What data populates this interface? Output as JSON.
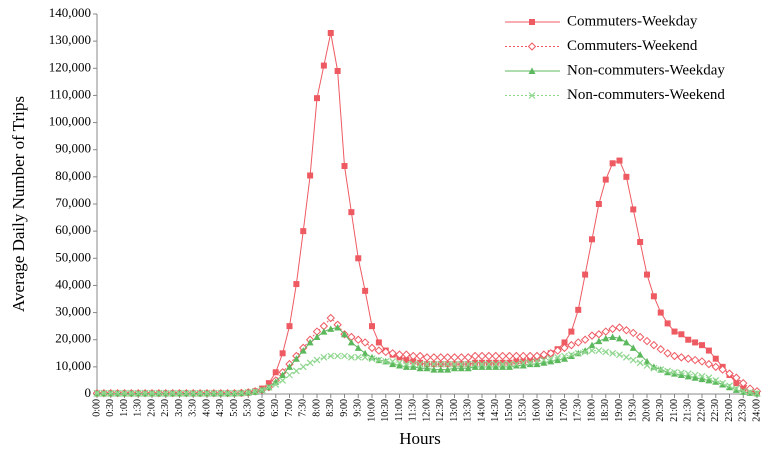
{
  "chart_data": {
    "type": "line",
    "y_label": "Average Daily Number of Trips",
    "x_label": "Hours",
    "categories": [
      "0:00",
      null,
      "0:30",
      null,
      "1:00",
      null,
      "1:30",
      null,
      "2:00",
      null,
      "2:30",
      null,
      "3:00",
      null,
      "3:30",
      null,
      "4:00",
      null,
      "4:30",
      null,
      "5:00",
      null,
      "5:30",
      null,
      "6:00",
      null,
      "6:30",
      null,
      "7:00",
      null,
      "7:30",
      null,
      "8:00",
      null,
      "8:30",
      null,
      "9:00",
      null,
      "9:30",
      null,
      "10:00",
      null,
      "10:30",
      null,
      "11:00",
      null,
      "11:30",
      null,
      "12:00",
      null,
      "12:30",
      null,
      "13:00",
      null,
      "13:30",
      null,
      "14:00",
      null,
      "14:30",
      null,
      "15:00",
      null,
      "15:30",
      null,
      "16:00",
      null,
      "16:30",
      null,
      "17:00",
      null,
      "17:30",
      null,
      "18:00",
      null,
      "18:30",
      null,
      "19:00",
      null,
      "19:30",
      null,
      "20:00",
      null,
      "20:30",
      null,
      "21:00",
      null,
      "21:30",
      null,
      "22:00",
      null,
      "22:30",
      null,
      "23:00",
      null,
      "23:30",
      null,
      "24:00"
    ],
    "ylim": [
      0,
      140000
    ],
    "yticks": [
      0,
      {
        "value": 10000,
        "label": "10,000"
      },
      {
        "value": 20000,
        "label": "20,000"
      },
      {
        "value": 30000,
        "label": "30,000"
      },
      {
        "value": 40000,
        "label": "40,000"
      },
      {
        "value": 50000,
        "label": "50,000"
      },
      {
        "value": 60000,
        "label": "60,000"
      },
      {
        "value": 70000,
        "label": "70,000"
      },
      {
        "value": 80000,
        "label": "80,000"
      },
      {
        "value": 90000,
        "label": "90,000"
      },
      {
        "value": 100000,
        "label": "100,000"
      },
      {
        "value": 110000,
        "label": "110,000"
      },
      {
        "value": 120000,
        "label": "120,000"
      },
      {
        "value": 130000,
        "label": "130,000"
      },
      {
        "value": 140000,
        "label": "140,000"
      }
    ],
    "grid": false,
    "legend": "top-right",
    "series": [
      {
        "name": "Commuters-Weekday",
        "color": "#ee5a62",
        "marker": "square",
        "dash": "solid",
        "values": [
          200,
          200,
          200,
          200,
          200,
          200,
          200,
          200,
          200,
          200,
          200,
          200,
          200,
          200,
          200,
          200,
          200,
          200,
          200,
          200,
          200,
          300,
          500,
          1000,
          2000,
          4000,
          8000,
          15000,
          25000,
          40500,
          60000,
          80500,
          109000,
          121000,
          133000,
          119000,
          84000,
          67000,
          50000,
          38000,
          25000,
          19000,
          16000,
          14500,
          13500,
          12500,
          12000,
          11500,
          11000,
          11000,
          11000,
          11000,
          11000,
          11000,
          11000,
          11500,
          11500,
          11500,
          11500,
          11500,
          11500,
          12000,
          12000,
          12500,
          13000,
          14000,
          15000,
          16500,
          19000,
          23000,
          31000,
          44000,
          57000,
          70000,
          79000,
          85000,
          86000,
          80000,
          68000,
          56000,
          44000,
          36000,
          30000,
          26000,
          23000,
          22000,
          20000,
          19000,
          18000,
          16000,
          13000,
          10000,
          7000,
          4000,
          2000,
          1000,
          500
        ]
      },
      {
        "name": "Commuters-Weekend",
        "color": "#ee5a62",
        "marker": "diamond",
        "dash": "dotted",
        "values": [
          300,
          300,
          300,
          300,
          300,
          300,
          300,
          300,
          300,
          300,
          300,
          300,
          300,
          300,
          300,
          300,
          300,
          300,
          300,
          300,
          300,
          400,
          600,
          1000,
          1500,
          2500,
          5000,
          8000,
          11000,
          14000,
          17000,
          20000,
          23000,
          25000,
          28000,
          25500,
          22000,
          21000,
          20000,
          19000,
          17000,
          16000,
          15500,
          15000,
          14500,
          14500,
          14000,
          14000,
          13500,
          13500,
          13500,
          13500,
          13500,
          13500,
          13500,
          14000,
          14000,
          14000,
          14000,
          14000,
          14000,
          14000,
          14000,
          14000,
          14000,
          14500,
          15000,
          16000,
          17000,
          18000,
          19000,
          20000,
          21500,
          22000,
          23000,
          24000,
          24500,
          23500,
          22500,
          21000,
          19500,
          18000,
          16500,
          15000,
          14000,
          13500,
          13000,
          12500,
          12000,
          11000,
          10000,
          9000,
          7500,
          6000,
          4000,
          2000,
          1000
        ]
      },
      {
        "name": "Non-commuters-Weekday",
        "color": "#5cb85c",
        "marker": "triangle",
        "dash": "solid",
        "values": [
          200,
          200,
          200,
          200,
          200,
          200,
          200,
          200,
          200,
          200,
          200,
          200,
          200,
          200,
          200,
          200,
          200,
          200,
          200,
          200,
          200,
          300,
          500,
          800,
          1500,
          2500,
          4500,
          7000,
          10000,
          13000,
          16000,
          19000,
          21000,
          23000,
          24000,
          24500,
          22000,
          19000,
          17000,
          15000,
          13500,
          12500,
          12000,
          11000,
          10500,
          10000,
          10000,
          9500,
          9500,
          9000,
          9000,
          9000,
          9500,
          9500,
          9500,
          10000,
          10000,
          10000,
          10000,
          10000,
          10000,
          10500,
          10500,
          11000,
          11000,
          11500,
          12000,
          12500,
          13000,
          14000,
          15000,
          16000,
          18000,
          19500,
          20500,
          21000,
          20500,
          19000,
          17000,
          14500,
          12000,
          10000,
          9000,
          8000,
          7500,
          7000,
          6500,
          6000,
          5500,
          5000,
          4500,
          3500,
          2500,
          1500,
          800,
          400,
          200
        ]
      },
      {
        "name": "Non-commuters-Weekend",
        "color": "#8fd68f",
        "marker": "cross",
        "dash": "dotted",
        "values": [
          300,
          300,
          300,
          300,
          300,
          300,
          300,
          300,
          300,
          300,
          300,
          300,
          300,
          300,
          300,
          300,
          300,
          300,
          300,
          300,
          300,
          400,
          600,
          900,
          1500,
          2500,
          3500,
          5000,
          7000,
          8500,
          10000,
          11500,
          12500,
          13500,
          14000,
          14000,
          14000,
          13500,
          13500,
          13500,
          13000,
          12500,
          12000,
          12000,
          11500,
          11000,
          11000,
          11000,
          11000,
          11000,
          11000,
          11000,
          11000,
          11000,
          11000,
          11000,
          11000,
          11000,
          11000,
          11000,
          11000,
          11000,
          11500,
          11500,
          12000,
          12500,
          13000,
          13500,
          14000,
          14500,
          15000,
          15500,
          16000,
          16000,
          15500,
          15000,
          14500,
          13500,
          12500,
          11500,
          10500,
          9500,
          9000,
          8500,
          8000,
          7800,
          7500,
          7000,
          6500,
          6000,
          5000,
          4000,
          3000,
          2000,
          1000,
          600,
          300
        ]
      }
    ]
  }
}
